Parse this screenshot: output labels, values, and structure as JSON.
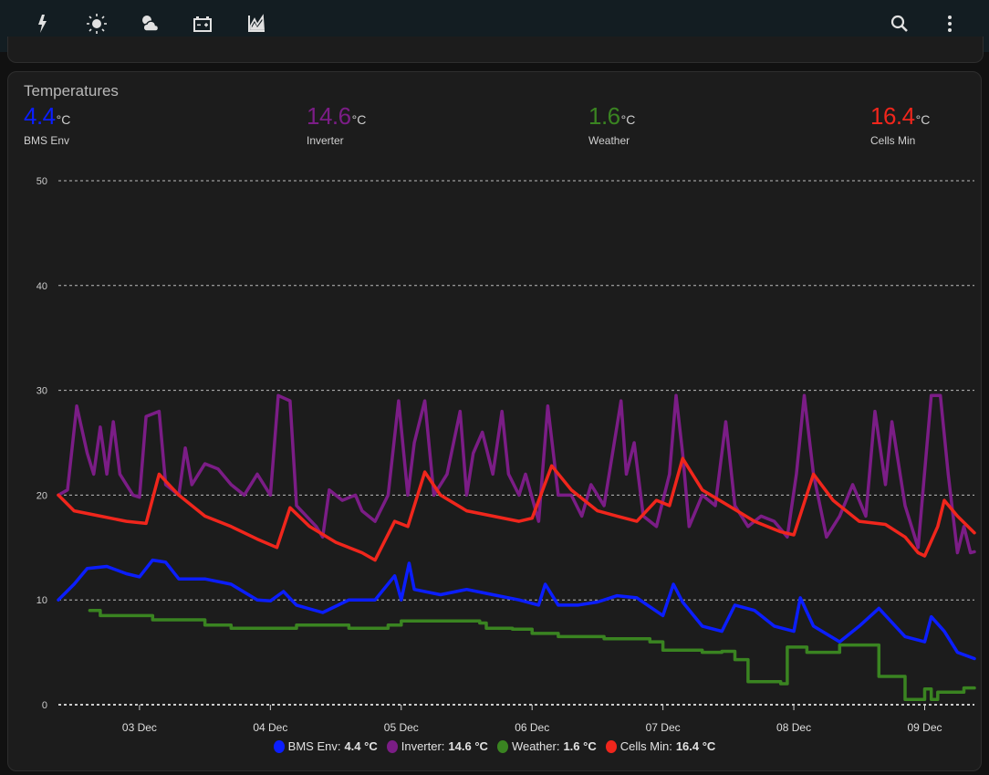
{
  "nav": {
    "tabs": [
      {
        "icon": "lightning-icon"
      },
      {
        "icon": "sun-icon"
      },
      {
        "icon": "cloud-sun-icon"
      },
      {
        "icon": "battery-icon"
      },
      {
        "icon": "chart-areaspline-icon",
        "active": true
      }
    ],
    "actions": [
      {
        "icon": "search-icon"
      },
      {
        "icon": "more-vertical-icon"
      }
    ]
  },
  "card": {
    "title": "Temperatures",
    "stats": [
      {
        "value": "4.4",
        "unit": "°C",
        "label": "BMS Env",
        "color": "#0b1eff"
      },
      {
        "value": "14.6",
        "unit": "°C",
        "label": "Inverter",
        "color": "#7b1d86"
      },
      {
        "value": "1.6",
        "unit": "°C",
        "label": "Weather",
        "color": "#3a8421"
      },
      {
        "value": "16.4",
        "unit": "°C",
        "label": "Cells Min",
        "color": "#f0261c"
      }
    ]
  },
  "legend": [
    {
      "name": "BMS Env:",
      "value": "4.4 °C",
      "color": "#0b1eff"
    },
    {
      "name": "Inverter:",
      "value": "14.6 °C",
      "color": "#7b1d86"
    },
    {
      "name": "Weather:",
      "value": "1.6 °C",
      "color": "#3a8421"
    },
    {
      "name": "Cells Min:",
      "value": "16.4 °C",
      "color": "#f0261c"
    }
  ],
  "chart_data": {
    "type": "line",
    "xlabel": "",
    "ylabel": "",
    "ylim": [
      0,
      50
    ],
    "xlim": [
      2.38,
      9.38
    ],
    "yticks": [
      "0",
      "10",
      "20",
      "30",
      "40",
      "50"
    ],
    "xticks": [
      {
        "x": 3,
        "label": "03 Dec"
      },
      {
        "x": 4,
        "label": "04 Dec"
      },
      {
        "x": 5,
        "label": "05 Dec"
      },
      {
        "x": 6,
        "label": "06 Dec"
      },
      {
        "x": 7,
        "label": "07 Dec"
      },
      {
        "x": 8,
        "label": "08 Dec"
      },
      {
        "x": 9,
        "label": "09 Dec"
      }
    ],
    "grid": true,
    "legend_position": "bottom",
    "series": [
      {
        "name": "Inverter",
        "color": "#7b1d86",
        "points": [
          [
            2.38,
            20
          ],
          [
            2.45,
            20.5
          ],
          [
            2.52,
            28.5
          ],
          [
            2.6,
            24
          ],
          [
            2.65,
            22
          ],
          [
            2.7,
            26.5
          ],
          [
            2.75,
            22
          ],
          [
            2.8,
            27
          ],
          [
            2.85,
            22
          ],
          [
            2.95,
            20
          ],
          [
            3.0,
            19.8
          ],
          [
            3.05,
            27.5
          ],
          [
            3.15,
            28
          ],
          [
            3.2,
            21
          ],
          [
            3.3,
            20
          ],
          [
            3.35,
            24.5
          ],
          [
            3.4,
            21
          ],
          [
            3.5,
            23
          ],
          [
            3.6,
            22.5
          ],
          [
            3.7,
            21
          ],
          [
            3.8,
            20
          ],
          [
            3.9,
            22
          ],
          [
            4.0,
            20
          ],
          [
            4.06,
            29.5
          ],
          [
            4.15,
            29
          ],
          [
            4.2,
            19
          ],
          [
            4.35,
            17
          ],
          [
            4.4,
            16
          ],
          [
            4.45,
            20.5
          ],
          [
            4.55,
            19.5
          ],
          [
            4.65,
            20
          ],
          [
            4.7,
            18.5
          ],
          [
            4.8,
            17.5
          ],
          [
            4.9,
            20
          ],
          [
            4.98,
            29
          ],
          [
            5.05,
            20
          ],
          [
            5.1,
            25
          ],
          [
            5.18,
            29
          ],
          [
            5.25,
            20
          ],
          [
            5.35,
            22
          ],
          [
            5.45,
            28
          ],
          [
            5.5,
            20
          ],
          [
            5.55,
            24
          ],
          [
            5.62,
            26
          ],
          [
            5.7,
            22
          ],
          [
            5.77,
            28
          ],
          [
            5.82,
            22
          ],
          [
            5.9,
            20
          ],
          [
            5.95,
            22
          ],
          [
            6.05,
            17.5
          ],
          [
            6.12,
            28.5
          ],
          [
            6.2,
            20
          ],
          [
            6.3,
            20
          ],
          [
            6.38,
            18
          ],
          [
            6.45,
            21
          ],
          [
            6.55,
            19
          ],
          [
            6.68,
            29
          ],
          [
            6.72,
            22
          ],
          [
            6.78,
            25
          ],
          [
            6.85,
            18
          ],
          [
            6.95,
            17
          ],
          [
            7.05,
            22
          ],
          [
            7.1,
            29.5
          ],
          [
            7.15,
            24
          ],
          [
            7.2,
            17
          ],
          [
            7.3,
            20
          ],
          [
            7.4,
            19
          ],
          [
            7.48,
            27
          ],
          [
            7.55,
            19
          ],
          [
            7.65,
            17
          ],
          [
            7.75,
            18
          ],
          [
            7.85,
            17.5
          ],
          [
            7.95,
            16
          ],
          [
            8.02,
            22
          ],
          [
            8.08,
            29.5
          ],
          [
            8.15,
            22
          ],
          [
            8.25,
            16
          ],
          [
            8.35,
            18
          ],
          [
            8.45,
            21
          ],
          [
            8.55,
            18
          ],
          [
            8.62,
            28
          ],
          [
            8.7,
            21
          ],
          [
            8.75,
            27
          ],
          [
            8.85,
            19
          ],
          [
            8.95,
            15
          ],
          [
            9.05,
            29.5
          ],
          [
            9.12,
            29.5
          ],
          [
            9.18,
            22
          ],
          [
            9.25,
            14.5
          ],
          [
            9.3,
            17
          ],
          [
            9.35,
            14.5
          ],
          [
            9.38,
            14.6
          ]
        ]
      },
      {
        "name": "Cells Min",
        "color": "#f0261c",
        "points": [
          [
            2.38,
            20
          ],
          [
            2.5,
            18.5
          ],
          [
            2.7,
            18
          ],
          [
            2.9,
            17.5
          ],
          [
            3.05,
            17.3
          ],
          [
            3.15,
            22
          ],
          [
            3.3,
            20
          ],
          [
            3.5,
            18
          ],
          [
            3.7,
            17
          ],
          [
            3.9,
            15.8
          ],
          [
            4.05,
            15
          ],
          [
            4.15,
            18.8
          ],
          [
            4.3,
            17
          ],
          [
            4.5,
            15.5
          ],
          [
            4.7,
            14.5
          ],
          [
            4.8,
            13.8
          ],
          [
            4.95,
            17.5
          ],
          [
            5.05,
            17
          ],
          [
            5.18,
            22.2
          ],
          [
            5.3,
            20
          ],
          [
            5.5,
            18.5
          ],
          [
            5.7,
            18
          ],
          [
            5.9,
            17.5
          ],
          [
            6.0,
            17.8
          ],
          [
            6.15,
            22.8
          ],
          [
            6.3,
            20.5
          ],
          [
            6.5,
            18.5
          ],
          [
            6.65,
            18
          ],
          [
            6.8,
            17.5
          ],
          [
            6.95,
            19.5
          ],
          [
            7.05,
            19
          ],
          [
            7.15,
            23.5
          ],
          [
            7.3,
            20.5
          ],
          [
            7.5,
            19
          ],
          [
            7.7,
            17.5
          ],
          [
            7.9,
            16.5
          ],
          [
            8.0,
            16.2
          ],
          [
            8.15,
            22
          ],
          [
            8.3,
            19.5
          ],
          [
            8.5,
            17.5
          ],
          [
            8.7,
            17.2
          ],
          [
            8.85,
            16
          ],
          [
            8.95,
            14.5
          ],
          [
            9.0,
            14.2
          ],
          [
            9.1,
            17
          ],
          [
            9.15,
            19.5
          ],
          [
            9.25,
            18
          ],
          [
            9.38,
            16.4
          ]
        ]
      },
      {
        "name": "BMS Env",
        "color": "#0b1eff",
        "points": [
          [
            2.38,
            10
          ],
          [
            2.5,
            11.5
          ],
          [
            2.6,
            13
          ],
          [
            2.75,
            13.2
          ],
          [
            2.9,
            12.5
          ],
          [
            3.0,
            12.2
          ],
          [
            3.1,
            13.8
          ],
          [
            3.2,
            13.6
          ],
          [
            3.3,
            12
          ],
          [
            3.5,
            12
          ],
          [
            3.7,
            11.5
          ],
          [
            3.9,
            10
          ],
          [
            4.0,
            9.9
          ],
          [
            4.1,
            10.8
          ],
          [
            4.2,
            9.5
          ],
          [
            4.4,
            8.8
          ],
          [
            4.6,
            10
          ],
          [
            4.8,
            10
          ],
          [
            4.95,
            12.3
          ],
          [
            5.0,
            10
          ],
          [
            5.06,
            13.5
          ],
          [
            5.1,
            11
          ],
          [
            5.3,
            10.5
          ],
          [
            5.5,
            11
          ],
          [
            5.7,
            10.5
          ],
          [
            5.9,
            10
          ],
          [
            6.05,
            9.5
          ],
          [
            6.1,
            11.5
          ],
          [
            6.2,
            9.5
          ],
          [
            6.35,
            9.5
          ],
          [
            6.5,
            9.8
          ],
          [
            6.65,
            10.4
          ],
          [
            6.8,
            10.2
          ],
          [
            7.0,
            8.5
          ],
          [
            7.08,
            11.5
          ],
          [
            7.15,
            9.8
          ],
          [
            7.3,
            7.5
          ],
          [
            7.45,
            7
          ],
          [
            7.55,
            9.5
          ],
          [
            7.7,
            9
          ],
          [
            7.85,
            7.5
          ],
          [
            8.0,
            7.0
          ],
          [
            8.05,
            10.2
          ],
          [
            8.15,
            7.5
          ],
          [
            8.35,
            6
          ],
          [
            8.5,
            7.5
          ],
          [
            8.65,
            9.2
          ],
          [
            8.85,
            6.5
          ],
          [
            9.0,
            6
          ],
          [
            9.05,
            8.4
          ],
          [
            9.15,
            7
          ],
          [
            9.25,
            5
          ],
          [
            9.38,
            4.4
          ]
        ]
      },
      {
        "name": "Weather",
        "color": "#3a8421",
        "step": true,
        "points": [
          [
            2.62,
            9
          ],
          [
            2.7,
            8.5
          ],
          [
            3.0,
            8.5
          ],
          [
            3.1,
            8.1
          ],
          [
            3.4,
            8.1
          ],
          [
            3.5,
            7.6
          ],
          [
            3.7,
            7.3
          ],
          [
            4.2,
            7.6
          ],
          [
            4.6,
            7.3
          ],
          [
            4.9,
            7.6
          ],
          [
            5.0,
            8
          ],
          [
            5.6,
            7.8
          ],
          [
            5.65,
            7.3
          ],
          [
            5.85,
            7.2
          ],
          [
            6.0,
            6.8
          ],
          [
            6.2,
            6.5
          ],
          [
            6.55,
            6.3
          ],
          [
            6.9,
            6
          ],
          [
            7.0,
            5.2
          ],
          [
            7.3,
            5.0
          ],
          [
            7.45,
            5.1
          ],
          [
            7.55,
            4.3
          ],
          [
            7.65,
            2.2
          ],
          [
            7.9,
            2.0
          ],
          [
            7.95,
            5.5
          ],
          [
            8.1,
            5
          ],
          [
            8.3,
            5
          ],
          [
            8.35,
            5.7
          ],
          [
            8.6,
            5.7
          ],
          [
            8.65,
            2.7
          ],
          [
            8.8,
            2.7
          ],
          [
            8.85,
            0.5
          ],
          [
            8.95,
            0.5
          ],
          [
            9.0,
            1.5
          ],
          [
            9.05,
            0.5
          ],
          [
            9.1,
            1.2
          ],
          [
            9.25,
            1.2
          ],
          [
            9.3,
            1.6
          ],
          [
            9.38,
            1.6
          ]
        ]
      }
    ]
  }
}
